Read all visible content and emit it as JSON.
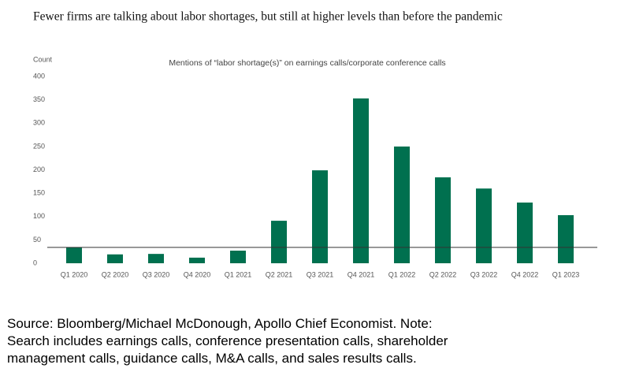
{
  "chart_data": {
    "type": "bar",
    "title": "Fewer firms are talking about labor shortages, but still at higher levels than before the pandemic",
    "subtitle": "Mentions of “labor shortage(s)” on earnings calls/corporate conference calls",
    "y_label": "Count",
    "categories": [
      "Q1 2020",
      "Q2 2020",
      "Q3 2020",
      "Q4 2020",
      "Q1 2021",
      "Q2 2021",
      "Q3 2021",
      "Q4 2021",
      "Q1 2022",
      "Q2 2022",
      "Q3 2022",
      "Q4 2022",
      "Q1 2023"
    ],
    "values": [
      34,
      19,
      20,
      12,
      27,
      91,
      199,
      353,
      250,
      184,
      160,
      130,
      103
    ],
    "color": "#00704f",
    "reference_line": 34,
    "ylim": [
      0,
      400
    ],
    "yticks": [
      0,
      50,
      100,
      150,
      200,
      250,
      300,
      350,
      400
    ],
    "grid": false
  },
  "source": [
    "Source: Bloomberg/Michael McDonough, Apollo Chief Economist. Note:",
    "Search includes earnings calls, conference presentation calls, shareholder",
    "management calls, guidance calls, M&A calls, and sales results calls."
  ]
}
